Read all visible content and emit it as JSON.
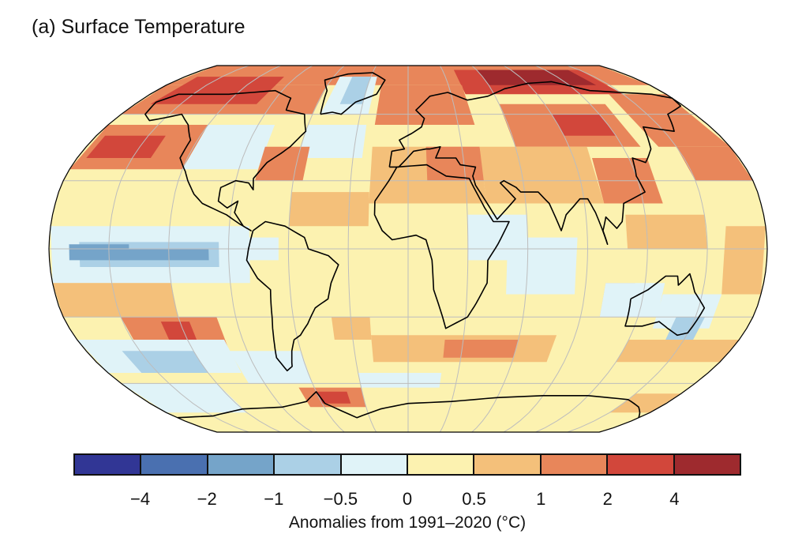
{
  "title": "(a) Surface Temperature",
  "colorbar": {
    "label": "Anomalies from 1991–2020 (°C)",
    "ticks": [
      "−4",
      "−2",
      "−1",
      "−0.5",
      "0",
      "0.5",
      "1",
      "2",
      "4"
    ],
    "colors": [
      "#313695",
      "#4a70b0",
      "#75a4c9",
      "#abd0e6",
      "#e0f3f8",
      "#fcf2b0",
      "#f4c07a",
      "#e8865a",
      "#d2473b",
      "#9e2a2e"
    ]
  },
  "map": {
    "projection": "Robinson",
    "graticule": true,
    "land_outline_color": "#000000",
    "grid_color": "#bbbbbb"
  }
}
